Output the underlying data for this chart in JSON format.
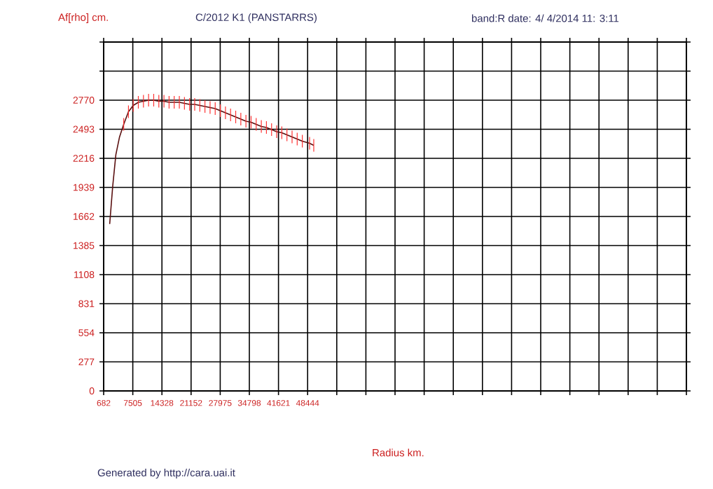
{
  "chart_data": {
    "type": "line",
    "title": "C/2012 K1 (PANSTARRS)",
    "subtitle": "band:R date:  4/ 4/2014 11: 3:11",
    "xlabel": "Radius km.",
    "ylabel": "Af[rho] cm.",
    "annotations": [
      "Generated by http://cara.uai.it"
    ],
    "x": [
      2093,
      2800,
      3535,
      4400,
      5373,
      6490,
      7600,
      8800,
      10000,
      11200,
      12400,
      13600,
      14800,
      16000,
      17200,
      18400,
      19600,
      20800,
      22000,
      23200,
      24400,
      25600,
      26800,
      28000,
      29200,
      30400,
      31600,
      32800,
      34000,
      35200,
      36400,
      37600,
      38800,
      40000,
      41200,
      42400,
      43600,
      44800,
      46000,
      47200,
      48900,
      49880
    ],
    "series": [
      {
        "color": "#5a1010",
        "values": [
          1590,
          1950,
          2250,
          2420,
          2540,
          2660,
          2720,
          2750,
          2760,
          2770,
          2770,
          2760,
          2760,
          2750,
          2750,
          2750,
          2740,
          2730,
          2730,
          2720,
          2710,
          2700,
          2690,
          2670,
          2650,
          2630,
          2610,
          2590,
          2570,
          2560,
          2540,
          2520,
          2510,
          2490,
          2470,
          2460,
          2440,
          2420,
          2400,
          2380,
          2360,
          2340
        ],
        "errors": [
          null,
          null,
          null,
          null,
          60,
          60,
          60,
          60,
          60,
          60,
          60,
          60,
          60,
          60,
          60,
          60,
          60,
          60,
          60,
          60,
          60,
          60,
          60,
          60,
          60,
          60,
          60,
          60,
          60,
          60,
          60,
          60,
          60,
          60,
          60,
          60,
          60,
          60,
          60,
          60,
          60,
          60
        ]
      }
    ],
    "xlim": [
      682,
      137143
    ],
    "ylim": [
      0,
      3324
    ],
    "xticks": [
      682,
      7505,
      14328,
      21152,
      27975,
      34798,
      41621,
      48444,
      {
        "value": 55267,
        "label": null
      },
      {
        "value": 62090,
        "label": null
      },
      {
        "value": 68913,
        "label": null
      },
      {
        "value": 75736,
        "label": null
      },
      {
        "value": 82559,
        "label": null
      },
      {
        "value": 89382,
        "label": null
      },
      {
        "value": 96205,
        "label": null
      },
      {
        "value": 103028,
        "label": null
      },
      {
        "value": 109851,
        "label": null
      },
      {
        "value": 116674,
        "label": null
      },
      {
        "value": 123497,
        "label": null
      },
      {
        "value": 130320,
        "label": null
      },
      {
        "value": 137143,
        "label": null
      }
    ],
    "yticks": [
      0,
      277,
      554,
      831,
      1108,
      1385,
      1662,
      1939,
      2216,
      2493,
      2770,
      {
        "value": 3047,
        "label": null
      },
      {
        "value": 3324,
        "label": null
      }
    ],
    "grid": true,
    "marker": "none",
    "line_style": "solid"
  }
}
